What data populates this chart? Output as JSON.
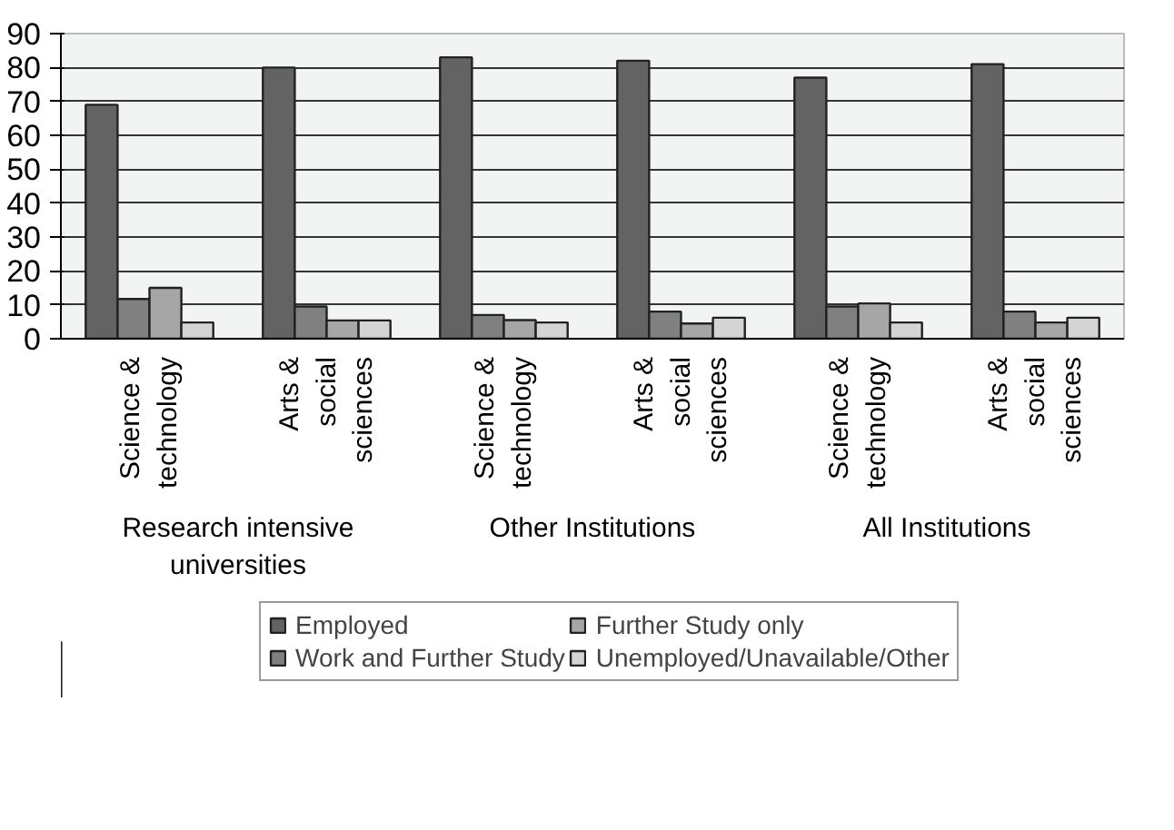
{
  "chart_data": {
    "type": "bar",
    "categories": [
      "Science & technology",
      "Arts & social sciences",
      "Science & technology",
      "Arts & social sciences",
      "Science & technology",
      "Arts & social sciences"
    ],
    "series": [
      {
        "name": "Employed",
        "color": "#636363",
        "values": [
          69,
          80,
          83,
          82,
          77,
          81
        ]
      },
      {
        "name": "Work and Further Study",
        "color": "#808080",
        "values": [
          11.7,
          9.5,
          7,
          8,
          9.5,
          8
        ]
      },
      {
        "name": "Further Study only",
        "color": "#a6a6a6",
        "values": [
          15,
          5.4,
          5.5,
          4.5,
          10.4,
          4.8
        ]
      },
      {
        "name": "Unemployed/Unavailable/Other",
        "color": "#d4d4d4",
        "values": [
          4.8,
          5.4,
          4.8,
          6.2,
          4.8,
          6.2
        ]
      }
    ],
    "annotations": [
      "Research intensive universities",
      "Other Institutions",
      "All Institutions"
    ],
    "ylim": [
      0,
      90
    ],
    "yticks": [
      0,
      10,
      20,
      30,
      40,
      50,
      60,
      70,
      80,
      90
    ],
    "grid": "y",
    "legend": "bottom"
  }
}
